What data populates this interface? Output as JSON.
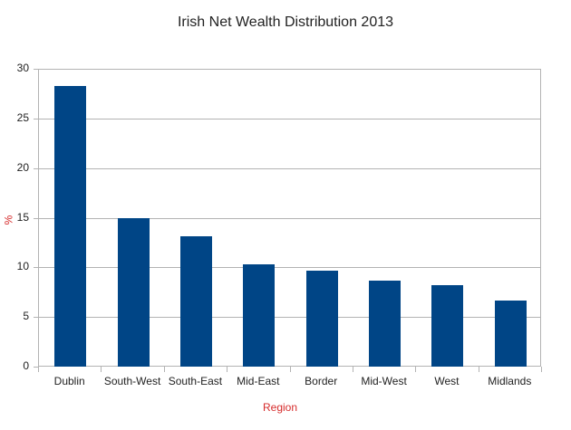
{
  "chart_data": {
    "type": "bar",
    "title": "Irish Net Wealth Distribution 2013",
    "xlabel": "Region",
    "ylabel": "%",
    "categories": [
      "Dublin",
      "South-West",
      "South-East",
      "Mid-East",
      "Border",
      "Mid-West",
      "West",
      "Midlands"
    ],
    "values": [
      28.3,
      15.0,
      13.1,
      10.3,
      9.7,
      8.7,
      8.2,
      6.7
    ],
    "ylim": [
      0,
      30
    ],
    "yticks": [
      0,
      5,
      10,
      15,
      20,
      25,
      30
    ],
    "grid": true,
    "legend": "none",
    "bar_color": "#004586",
    "axis_title_color": "#d62b2b"
  }
}
